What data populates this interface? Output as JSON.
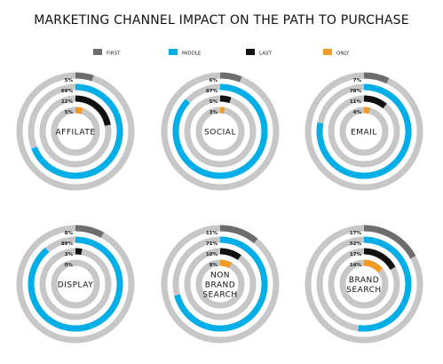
{
  "chart_data": {
    "type": "radial-bar",
    "title": "MARKETING CHANNEL IMPACT ON THE PATH TO PURCHASE",
    "series": [
      {
        "name": "FIRST",
        "color": "#6d6d6d"
      },
      {
        "name": "MIDDLE",
        "color": "#00aee8"
      },
      {
        "name": "LAST",
        "color": "#111111"
      },
      {
        "name": "ONLY",
        "color": "#f29a23"
      }
    ],
    "track_color": "#c7c7c7",
    "channels": [
      {
        "label_lines": [
          "AFFILATE"
        ],
        "value_labels": [
          "5%",
          "69%",
          "22%",
          "5%"
        ],
        "values": [
          5,
          69,
          22,
          5
        ]
      },
      {
        "label_lines": [
          "SOCIAL"
        ],
        "value_labels": [
          "6%",
          "87%",
          "5%",
          "3%"
        ],
        "values": [
          6,
          87,
          5,
          3
        ]
      },
      {
        "label_lines": [
          "EMAIL"
        ],
        "value_labels": [
          "7%",
          "78%",
          "11%",
          "4%"
        ],
        "values": [
          7,
          78,
          11,
          4
        ]
      },
      {
        "label_lines": [
          "DISPLAY"
        ],
        "value_labels": [
          "8%",
          "89%",
          "3%",
          "0%"
        ],
        "values": [
          8,
          89,
          3,
          0
        ]
      },
      {
        "label_lines": [
          "NON",
          "BRAND",
          "SEARCH"
        ],
        "value_labels": [
          "11%",
          "71%",
          "10%",
          "8%"
        ],
        "values": [
          11,
          71,
          10,
          8
        ]
      },
      {
        "label_lines": [
          "BRAND",
          "SEARCH"
        ],
        "value_labels": [
          "17%",
          "52%",
          "17%",
          "14%"
        ],
        "values": [
          17,
          52,
          17,
          14
        ]
      }
    ]
  }
}
